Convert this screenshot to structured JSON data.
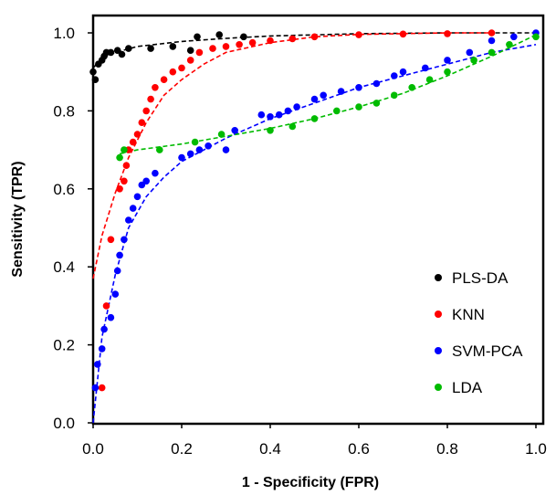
{
  "chart_data": {
    "type": "scatter",
    "xlabel": "1 - Specificity (FPR)",
    "ylabel": "Sensitivity (TPR)",
    "xlim": [
      0,
      1
    ],
    "ylim": [
      0,
      1
    ],
    "x_ticks": [
      "0.0",
      "0.2",
      "0.4",
      "0.6",
      "0.8",
      "1.0"
    ],
    "y_ticks": [
      "0.0",
      "0.2",
      "0.4",
      "0.6",
      "0.8",
      "1.0"
    ],
    "grid": false,
    "legend_position": "bottom-right",
    "series": [
      {
        "name": "PLS-DA",
        "color": "#000000",
        "points": [
          [
            0.0,
            0.9
          ],
          [
            0.005,
            0.88
          ],
          [
            0.012,
            0.92
          ],
          [
            0.02,
            0.93
          ],
          [
            0.025,
            0.94
          ],
          [
            0.03,
            0.95
          ],
          [
            0.04,
            0.95
          ],
          [
            0.055,
            0.955
          ],
          [
            0.065,
            0.945
          ],
          [
            0.08,
            0.96
          ],
          [
            0.13,
            0.96
          ],
          [
            0.18,
            0.965
          ],
          [
            0.22,
            0.955
          ],
          [
            0.235,
            0.99
          ],
          [
            0.285,
            0.995
          ],
          [
            0.34,
            0.99
          ]
        ],
        "fit": [
          [
            0.0,
            0.91
          ],
          [
            0.02,
            0.935
          ],
          [
            0.05,
            0.95
          ],
          [
            0.1,
            0.965
          ],
          [
            0.2,
            0.978
          ],
          [
            0.3,
            0.986
          ],
          [
            0.4,
            0.992
          ],
          [
            0.6,
            0.998
          ],
          [
            0.8,
            1.0
          ],
          [
            1.0,
            1.0
          ]
        ]
      },
      {
        "name": "KNN",
        "color": "#ff0000",
        "points": [
          [
            0.02,
            0.09
          ],
          [
            0.03,
            0.3
          ],
          [
            0.04,
            0.47
          ],
          [
            0.06,
            0.6
          ],
          [
            0.07,
            0.62
          ],
          [
            0.075,
            0.66
          ],
          [
            0.08,
            0.7
          ],
          [
            0.09,
            0.72
          ],
          [
            0.1,
            0.74
          ],
          [
            0.11,
            0.77
          ],
          [
            0.12,
            0.8
          ],
          [
            0.13,
            0.83
          ],
          [
            0.14,
            0.86
          ],
          [
            0.16,
            0.88
          ],
          [
            0.18,
            0.9
          ],
          [
            0.2,
            0.91
          ],
          [
            0.22,
            0.93
          ],
          [
            0.24,
            0.95
          ],
          [
            0.27,
            0.96
          ],
          [
            0.3,
            0.965
          ],
          [
            0.33,
            0.97
          ],
          [
            0.36,
            0.975
          ],
          [
            0.4,
            0.98
          ],
          [
            0.45,
            0.985
          ],
          [
            0.5,
            0.99
          ],
          [
            0.6,
            0.995
          ],
          [
            0.7,
            0.997
          ],
          [
            0.8,
            0.998
          ],
          [
            0.9,
            1.0
          ]
        ],
        "fit": [
          [
            0.0,
            0.37
          ],
          [
            0.02,
            0.48
          ],
          [
            0.05,
            0.59
          ],
          [
            0.08,
            0.68
          ],
          [
            0.12,
            0.77
          ],
          [
            0.16,
            0.84
          ],
          [
            0.2,
            0.88
          ],
          [
            0.25,
            0.92
          ],
          [
            0.3,
            0.95
          ],
          [
            0.4,
            0.975
          ],
          [
            0.5,
            0.99
          ],
          [
            0.6,
            0.996
          ],
          [
            0.8,
            1.0
          ],
          [
            0.9,
            1.0
          ]
        ]
      },
      {
        "name": "SVM-PCA",
        "color": "#0000ff",
        "points": [
          [
            0.005,
            0.09
          ],
          [
            0.01,
            0.15
          ],
          [
            0.02,
            0.19
          ],
          [
            0.025,
            0.24
          ],
          [
            0.04,
            0.27
          ],
          [
            0.05,
            0.33
          ],
          [
            0.055,
            0.39
          ],
          [
            0.06,
            0.43
          ],
          [
            0.07,
            0.47
          ],
          [
            0.08,
            0.52
          ],
          [
            0.09,
            0.55
          ],
          [
            0.1,
            0.58
          ],
          [
            0.11,
            0.61
          ],
          [
            0.12,
            0.62
          ],
          [
            0.14,
            0.64
          ],
          [
            0.2,
            0.68
          ],
          [
            0.22,
            0.69
          ],
          [
            0.24,
            0.7
          ],
          [
            0.26,
            0.71
          ],
          [
            0.3,
            0.7
          ],
          [
            0.32,
            0.75
          ],
          [
            0.38,
            0.79
          ],
          [
            0.4,
            0.785
          ],
          [
            0.42,
            0.79
          ],
          [
            0.44,
            0.8
          ],
          [
            0.46,
            0.81
          ],
          [
            0.5,
            0.83
          ],
          [
            0.52,
            0.84
          ],
          [
            0.56,
            0.85
          ],
          [
            0.6,
            0.86
          ],
          [
            0.64,
            0.87
          ],
          [
            0.68,
            0.89
          ],
          [
            0.7,
            0.9
          ],
          [
            0.75,
            0.91
          ],
          [
            0.8,
            0.93
          ],
          [
            0.85,
            0.95
          ],
          [
            0.9,
            0.98
          ],
          [
            0.95,
            0.99
          ],
          [
            1.0,
            1.0
          ]
        ],
        "fit": [
          [
            0.0,
            0.0
          ],
          [
            0.02,
            0.22
          ],
          [
            0.05,
            0.38
          ],
          [
            0.08,
            0.5
          ],
          [
            0.12,
            0.58
          ],
          [
            0.16,
            0.63
          ],
          [
            0.2,
            0.67
          ],
          [
            0.3,
            0.73
          ],
          [
            0.4,
            0.78
          ],
          [
            0.5,
            0.82
          ],
          [
            0.6,
            0.86
          ],
          [
            0.7,
            0.89
          ],
          [
            0.8,
            0.92
          ],
          [
            0.9,
            0.95
          ],
          [
            1.0,
            0.97
          ]
        ]
      },
      {
        "name": "LDA",
        "color": "#00bb00",
        "points": [
          [
            0.06,
            0.68
          ],
          [
            0.07,
            0.7
          ],
          [
            0.15,
            0.7
          ],
          [
            0.23,
            0.72
          ],
          [
            0.29,
            0.74
          ],
          [
            0.4,
            0.75
          ],
          [
            0.45,
            0.76
          ],
          [
            0.5,
            0.78
          ],
          [
            0.55,
            0.8
          ],
          [
            0.6,
            0.81
          ],
          [
            0.64,
            0.82
          ],
          [
            0.68,
            0.84
          ],
          [
            0.72,
            0.86
          ],
          [
            0.76,
            0.88
          ],
          [
            0.8,
            0.9
          ],
          [
            0.86,
            0.93
          ],
          [
            0.9,
            0.95
          ],
          [
            0.94,
            0.97
          ],
          [
            1.0,
            0.99
          ]
        ],
        "fit": [
          [
            0.06,
            0.69
          ],
          [
            0.1,
            0.7
          ],
          [
            0.2,
            0.715
          ],
          [
            0.3,
            0.735
          ],
          [
            0.4,
            0.755
          ],
          [
            0.5,
            0.78
          ],
          [
            0.6,
            0.81
          ],
          [
            0.7,
            0.845
          ],
          [
            0.8,
            0.89
          ],
          [
            0.9,
            0.94
          ],
          [
            1.0,
            0.995
          ]
        ]
      }
    ]
  }
}
